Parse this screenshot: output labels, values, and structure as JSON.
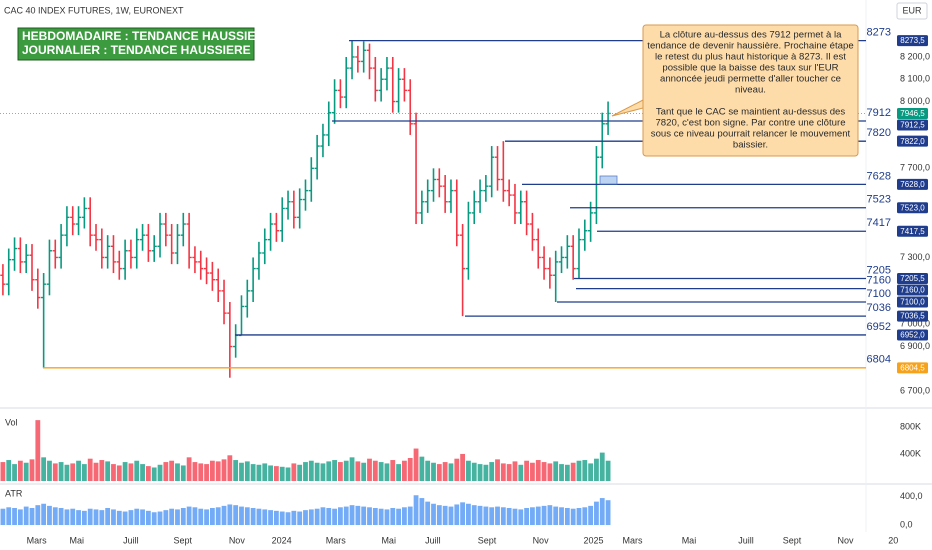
{
  "header": {
    "symbol": "CAC 40 INDEX FUTURES, 1W, EURONEXT",
    "currency": "EUR"
  },
  "trend_box": [
    "HEBDOMADAIRE : TENDANCE HAUSSIERE",
    "JOURNALIER : TENDANCE HAUSSIERE"
  ],
  "callout": [
    [
      "La clôture au-dessus des 7912 permet à la",
      "tendance de devenir haussière. Prochaine étape",
      "le retest du plus haut historique à 8273. Il est",
      "possible que la baisse des taux sur l'EUR",
      "annoncée jeudi permette d'aller toucher ce",
      "niveau."
    ],
    [
      "Tant que le CAC se maintient au-dessus des",
      "7820, c'est bon signe. Par contre une clôture",
      "sous ce niveau pourrait relancer le mouvement",
      "baissier."
    ]
  ],
  "chart_data": {
    "type": "ohlc",
    "up_color": "#089981",
    "down_color": "#f23645",
    "xlim": [
      -0.5,
      153
    ],
    "xticks": [
      {
        "value": 5.8,
        "label": "Mars"
      },
      {
        "value": 12.7,
        "label": "Mai"
      },
      {
        "value": 22,
        "label": "Juill"
      },
      {
        "value": 30.9,
        "label": "Sept"
      },
      {
        "value": 40.2,
        "label": "Nov"
      },
      {
        "value": 47.9,
        "label": "2024"
      },
      {
        "value": 57.2,
        "label": "Mars"
      },
      {
        "value": 66.3,
        "label": "Mai"
      },
      {
        "value": 73.9,
        "label": "Juill"
      },
      {
        "value": 83.2,
        "label": "Sept"
      },
      {
        "value": 92.4,
        "label": "Nov"
      },
      {
        "value": 101.5,
        "label": "2025"
      },
      {
        "value": 108.2,
        "label": "Mars"
      },
      {
        "value": 117.9,
        "label": "Mai"
      },
      {
        "value": 127.7,
        "label": "Juill"
      },
      {
        "value": 135.6,
        "label": "Sept"
      },
      {
        "value": 144.8,
        "label": "Nov"
      },
      {
        "value": 153,
        "label": "20"
      }
    ],
    "ylim": [
      6660,
      8366
    ],
    "yticks": [
      {
        "value": 8200,
        "label": "8 200,0"
      },
      {
        "value": 8100,
        "label": "8 100,0"
      },
      {
        "value": 8000,
        "label": "8 000,0"
      },
      {
        "value": 7700,
        "label": "7 700,0"
      },
      {
        "value": 7300,
        "label": "7 300,0"
      },
      {
        "value": 7000,
        "label": "7 000,0"
      },
      {
        "value": 6900,
        "label": "6 900,0"
      },
      {
        "value": 6700,
        "label": "6 700,0"
      }
    ],
    "open": [
      7220,
      7180,
      7290,
      7340,
      7280,
      7310,
      7200,
      7120,
      7180,
      7330,
      7300,
      7400,
      7480,
      7450,
      7480,
      7520,
      7400,
      7380,
      7300,
      7350,
      7280,
      7250,
      7330,
      7300,
      7380,
      7400,
      7330,
      7350,
      7450,
      7400,
      7320,
      7400,
      7450,
      7300,
      7280,
      7250,
      7230,
      7200,
      7150,
      7050,
      6900,
      6950,
      7080,
      7150,
      7250,
      7320,
      7380,
      7450,
      7420,
      7520,
      7550,
      7480,
      7560,
      7600,
      7700,
      7800,
      7850,
      7950,
      8050,
      8020,
      8150,
      8200,
      8180,
      8230,
      8150,
      8050,
      8100,
      8150,
      8000,
      8100,
      8050,
      7900,
      7500,
      7550,
      7600,
      7650,
      7620,
      7550,
      7600,
      7400,
      7250,
      7500,
      7550,
      7600,
      7620,
      7750,
      7650,
      7600,
      7580,
      7500,
      7550,
      7450,
      7380,
      7300,
      7250,
      7220,
      7280,
      7300,
      7350,
      7250,
      7380,
      7420,
      7500,
      7750,
      7900
    ],
    "high": [
      7270,
      7340,
      7390,
      7390,
      7360,
      7360,
      7250,
      7230,
      7380,
      7380,
      7450,
      7530,
      7530,
      7530,
      7570,
      7570,
      7450,
      7430,
      7400,
      7400,
      7330,
      7380,
      7380,
      7430,
      7450,
      7450,
      7400,
      7500,
      7500,
      7450,
      7450,
      7500,
      7500,
      7350,
      7330,
      7300,
      7280,
      7250,
      7200,
      7100,
      7000,
      7130,
      7200,
      7300,
      7370,
      7430,
      7500,
      7500,
      7570,
      7600,
      7600,
      7610,
      7650,
      7750,
      7850,
      7900,
      8000,
      8100,
      8100,
      8200,
      8273.5,
      8250,
      8270,
      8260,
      8200,
      8150,
      8200,
      8200,
      8150,
      8150,
      8100,
      7950,
      7600,
      7650,
      7700,
      7700,
      7670,
      7650,
      7650,
      7450,
      7550,
      7600,
      7650,
      7670,
      7800,
      7800,
      7822,
      7650,
      7630,
      7600,
      7600,
      7500,
      7430,
      7350,
      7300,
      7330,
      7350,
      7400,
      7400,
      7430,
      7470,
      7550,
      7800,
      7950,
      8000
    ],
    "low": [
      7130,
      7130,
      7240,
      7230,
      7230,
      7150,
      7070,
      6804.5,
      7130,
      7250,
      7250,
      7350,
      7400,
      7400,
      7430,
      7350,
      7330,
      7250,
      7250,
      7230,
      7200,
      7200,
      7250,
      7250,
      7330,
      7280,
      7280,
      7300,
      7350,
      7270,
      7270,
      7350,
      7250,
      7230,
      7200,
      7180,
      7150,
      7100,
      7000,
      6760,
      6850,
      6952,
      7030,
      7100,
      7200,
      7270,
      7330,
      7370,
      7370,
      7470,
      7430,
      7430,
      7510,
      7550,
      7650,
      7750,
      7800,
      7900,
      7970,
      7970,
      8100,
      8130,
      8130,
      8100,
      8000,
      8000,
      8050,
      7950,
      7950,
      8000,
      7850,
      7450,
      7450,
      7500,
      7550,
      7570,
      7500,
      7500,
      7350,
      7036.5,
      7200,
      7450,
      7500,
      7550,
      7570,
      7600,
      7550,
      7530,
      7450,
      7450,
      7400,
      7330,
      7250,
      7200,
      7160,
      7100,
      7230,
      7250,
      7200,
      7205.5,
      7330,
      7370,
      7450,
      7700,
      7850
    ],
    "close": [
      7180,
      7290,
      7340,
      7280,
      7310,
      7200,
      7120,
      7180,
      7330,
      7300,
      7400,
      7480,
      7450,
      7480,
      7520,
      7400,
      7380,
      7300,
      7350,
      7280,
      7250,
      7330,
      7300,
      7380,
      7400,
      7330,
      7350,
      7450,
      7400,
      7320,
      7400,
      7450,
      7300,
      7280,
      7250,
      7230,
      7200,
      7150,
      7050,
      6900,
      6950,
      7080,
      7150,
      7250,
      7320,
      7380,
      7450,
      7420,
      7520,
      7550,
      7480,
      7560,
      7600,
      7700,
      7800,
      7850,
      7950,
      8050,
      8020,
      8150,
      8200,
      8180,
      8230,
      8150,
      8050,
      8100,
      8150,
      8000,
      8100,
      8050,
      7900,
      7500,
      7550,
      7600,
      7650,
      7620,
      7550,
      7600,
      7400,
      7250,
      7500,
      7550,
      7600,
      7620,
      7750,
      7650,
      7600,
      7580,
      7500,
      7550,
      7450,
      7380,
      7300,
      7250,
      7220,
      7280,
      7300,
      7350,
      7250,
      7380,
      7420,
      7500,
      7750,
      7900,
      7946.5
    ],
    "last_label": "7946,5",
    "last_color": "#089981",
    "levels": [
      {
        "name": "8273",
        "value": 8273.5,
        "value_label": "8273,5",
        "color": "#1f3d8c"
      },
      {
        "name": "7912",
        "value": 7912.5,
        "value_label": "7912,5",
        "color": "#1f3d8c"
      },
      {
        "name": "7820",
        "value": 7822,
        "value_label": "7822,0",
        "color": "#1f3d8c"
      },
      {
        "name": "7628",
        "value": 7628,
        "value_label": "7628,0",
        "color": "#1f3d8c"
      },
      {
        "name": "7523",
        "value": 7523,
        "value_label": "7523,0",
        "color": "#1f3d8c"
      },
      {
        "name": "7417",
        "value": 7417.5,
        "value_label": "7417,5",
        "color": "#1f3d8c"
      },
      {
        "name": "7205",
        "value": 7205.5,
        "value_label": "7205,5",
        "color": "#1f3d8c"
      },
      {
        "name": "7160",
        "value": 7160,
        "value_label": "7160,0",
        "color": "#1f3d8c"
      },
      {
        "name": "7100",
        "value": 7100,
        "value_label": "7100,0",
        "color": "#1f3d8c"
      },
      {
        "name": "7036",
        "value": 7036.5,
        "value_label": "7036,5",
        "color": "#1f3d8c"
      },
      {
        "name": "6952",
        "value": 6952,
        "value_label": "6952,0",
        "color": "#1f3d8c"
      },
      {
        "name": "6804",
        "value": 6804.5,
        "value_label": "6804,5",
        "color": "#f7a21b"
      }
    ],
    "volume": {
      "name": "Vol",
      "ylim": [
        0,
        1050000
      ],
      "yticks": [
        {
          "value": 800000,
          "label": "800K"
        },
        {
          "value": 400000,
          "label": "400K"
        }
      ],
      "values": [
        280000,
        310000,
        250000,
        300000,
        270000,
        320000,
        900000,
        350000,
        300000,
        260000,
        280000,
        240000,
        260000,
        300000,
        250000,
        330000,
        270000,
        310000,
        290000,
        250000,
        230000,
        280000,
        260000,
        300000,
        250000,
        220000,
        200000,
        240000,
        280000,
        300000,
        260000,
        230000,
        350000,
        280000,
        260000,
        250000,
        300000,
        290000,
        320000,
        380000,
        310000,
        270000,
        290000,
        250000,
        240000,
        260000,
        230000,
        220000,
        210000,
        200000,
        260000,
        240000,
        280000,
        300000,
        270000,
        260000,
        290000,
        310000,
        280000,
        300000,
        350000,
        290000,
        270000,
        330000,
        300000,
        280000,
        260000,
        310000,
        250000,
        300000,
        340000,
        480000,
        360000,
        300000,
        270000,
        250000,
        280000,
        260000,
        330000,
        400000,
        300000,
        270000,
        250000,
        240000,
        280000,
        320000,
        260000,
        250000,
        290000,
        240000,
        300000,
        270000,
        310000,
        280000,
        260000,
        290000,
        250000,
        240000,
        270000,
        300000,
        310000,
        260000,
        330000,
        420000,
        300000
      ]
    },
    "atr": {
      "name": "ATR",
      "color": "#5b9cf6",
      "ylim": [
        0,
        480
      ],
      "yticks": [
        {
          "value": 400,
          "label": "400,0"
        },
        {
          "value": 0,
          "label": "0,0"
        }
      ],
      "values": [
        230,
        250,
        240,
        220,
        260,
        240,
        280,
        300,
        270,
        250,
        240,
        220,
        230,
        210,
        200,
        230,
        220,
        210,
        240,
        220,
        200,
        190,
        210,
        230,
        220,
        200,
        180,
        190,
        210,
        230,
        220,
        240,
        260,
        250,
        230,
        220,
        240,
        250,
        270,
        290,
        280,
        260,
        250,
        240,
        230,
        220,
        210,
        200,
        190,
        180,
        200,
        190,
        210,
        220,
        230,
        250,
        240,
        230,
        250,
        260,
        280,
        270,
        260,
        250,
        240,
        230,
        220,
        240,
        230,
        250,
        260,
        420,
        380,
        330,
        300,
        280,
        270,
        260,
        290,
        320,
        300,
        280,
        270,
        260,
        250,
        260,
        250,
        240,
        230,
        220,
        240,
        250,
        260,
        270,
        280,
        260,
        250,
        240,
        230,
        240,
        250,
        270,
        330,
        380,
        350
      ]
    }
  }
}
